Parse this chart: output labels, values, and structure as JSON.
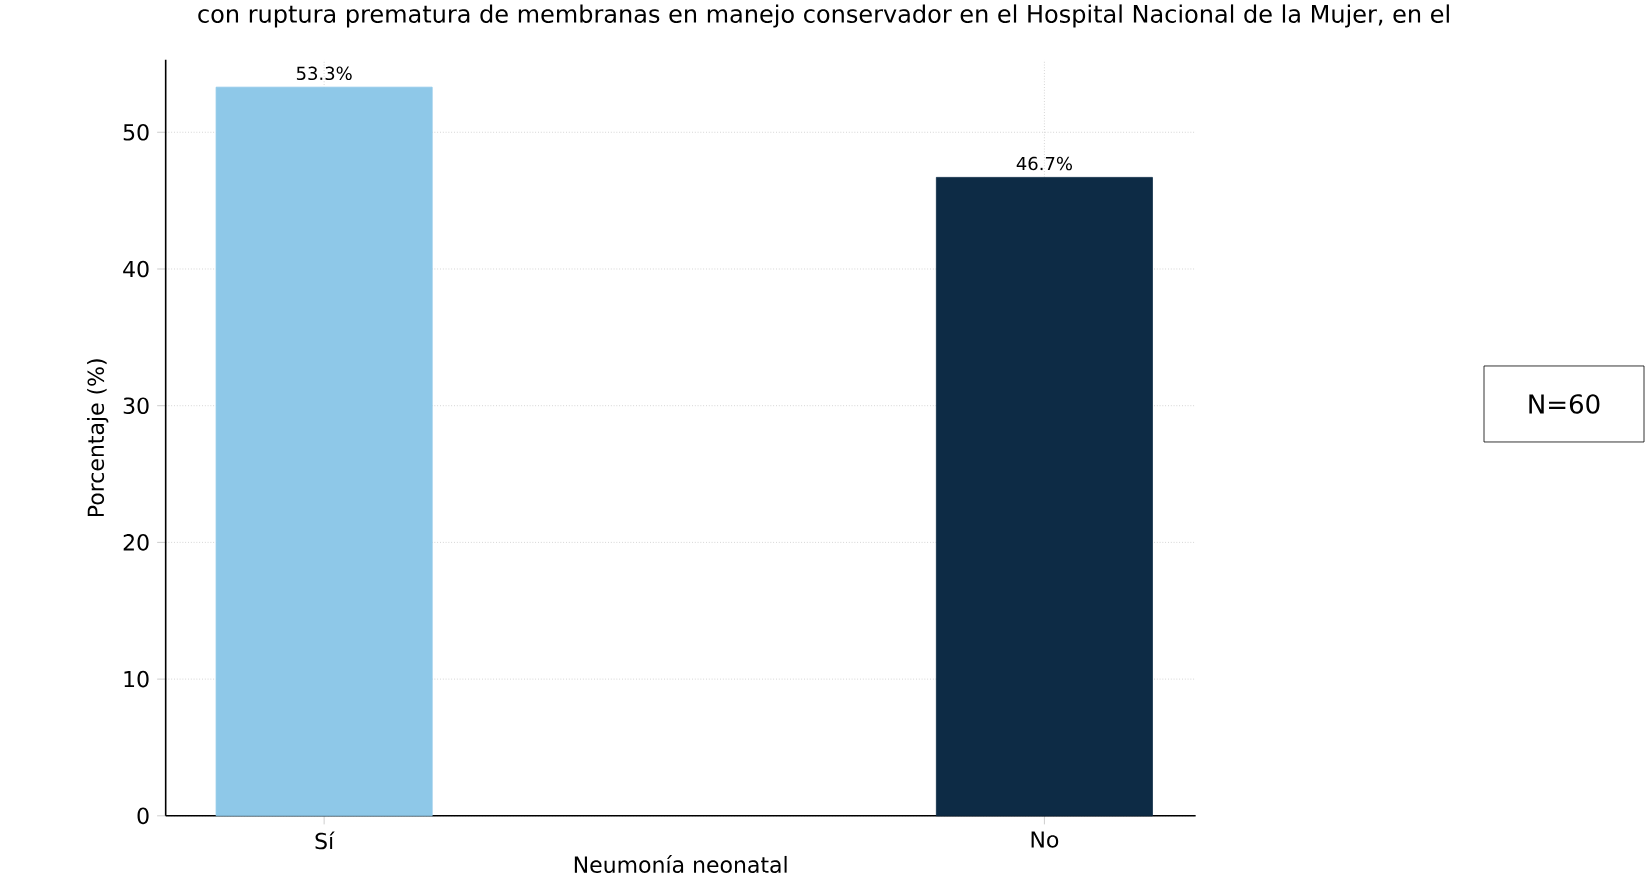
{
  "chart_data": {
    "type": "bar",
    "title": "con ruptura prematura de membranas en manejo conservador en el Hospital Nacional de la Mujer, en el",
    "xlabel": "Neumonía neonatal",
    "ylabel": "Porcentaje (%)",
    "categories": [
      "Sí",
      "No"
    ],
    "values": [
      53.3,
      46.7
    ],
    "colors": [
      "#8ec8e8",
      "#0d2b45"
    ],
    "value_labels": [
      "53.3%",
      "46.7%"
    ],
    "ylim": [
      0,
      55.3
    ],
    "yticks": [
      0,
      10,
      20,
      30,
      40,
      50
    ],
    "grid": true,
    "annotations": [
      "N=60"
    ]
  }
}
